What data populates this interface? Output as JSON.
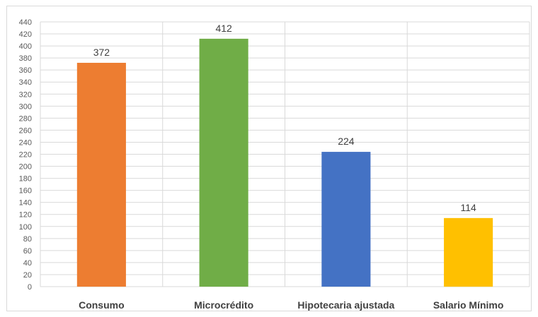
{
  "chart_data": {
    "type": "bar",
    "title": "",
    "xlabel": "",
    "ylabel": "",
    "categories": [
      "Consumo",
      "Microcrédito",
      "Hipotecaria ajustada",
      "Salario Mínimo"
    ],
    "values": [
      372,
      412,
      224,
      114
    ],
    "data_labels": [
      "372",
      "412",
      "224",
      "114"
    ],
    "colors": [
      "#ed7d31",
      "#70ad47",
      "#4472c4",
      "#ffc000"
    ],
    "ylim": [
      0,
      440
    ],
    "ytick_step": 20,
    "yticks": [
      "0",
      "20",
      "40",
      "60",
      "80",
      "100",
      "120",
      "140",
      "160",
      "180",
      "200",
      "220",
      "240",
      "260",
      "280",
      "300",
      "320",
      "340",
      "360",
      "380",
      "400",
      "420",
      "440"
    ],
    "grid": true,
    "legend": "none"
  }
}
